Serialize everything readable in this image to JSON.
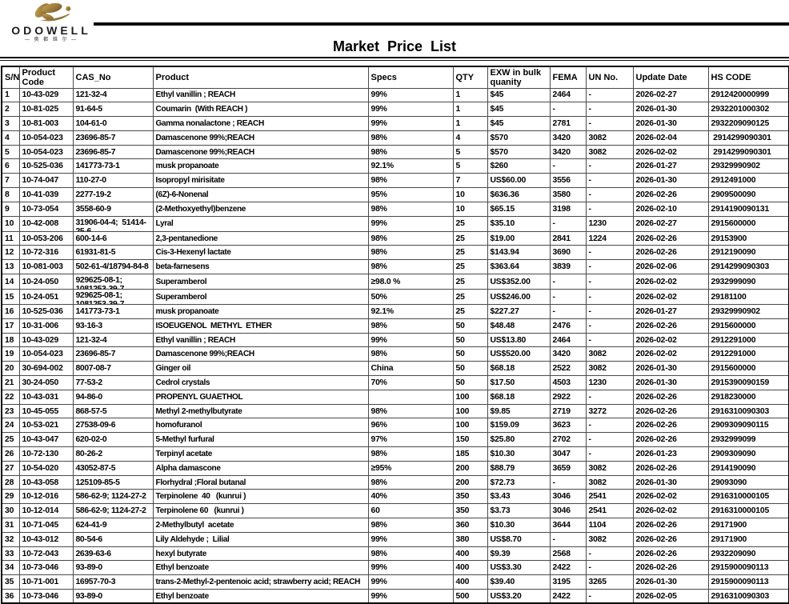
{
  "colors": {
    "logo_gold": "#9a7b3e",
    "logo_gold_dark": "#6f5420",
    "line_black": "#0d0d0d"
  },
  "logo": {
    "name": "ODOWELL",
    "subtitle": "— 奥 都 维 尔 —",
    "icon": "butterfly-orchid-gold-mark"
  },
  "title": "Market Price List",
  "table": {
    "headers": [
      "S/N",
      "Product Code",
      "CAS_No",
      "Product",
      "Specs",
      "QTY",
      "EXW in bulk quanity",
      "FEMA",
      "UN No.",
      "Update Date",
      "HS CODE"
    ],
    "col_keys": [
      "sn",
      "code",
      "cas",
      "product",
      "specs",
      "qty",
      "price",
      "fema",
      "un",
      "date",
      "hs"
    ],
    "rows": [
      {
        "sn": "1",
        "code": "10-43-029",
        "cas": "121-32-4",
        "product": "Ethyl vanillin ; REACH",
        "specs": "99%",
        "qty": "1",
        "price": "$45",
        "fema": "2464",
        "un": "-",
        "date": "2026-02-27",
        "hs": "2912420000999"
      },
      {
        "sn": "2",
        "code": "10-81-025",
        "cas": "91-64-5",
        "product": "Coumarin  (With REACH )",
        "specs": "99%",
        "qty": "1",
        "price": "$45",
        "fema": "-",
        "un": "-",
        "date": "2026-01-30",
        "hs": "2932201000302"
      },
      {
        "sn": "3",
        "code": "10-81-003",
        "cas": "104-61-0",
        "product": "Gamma nonalactone ; REACH",
        "specs": "99%",
        "qty": "1",
        "price": "$45",
        "fema": "2781",
        "un": "-",
        "date": "2026-01-30",
        "hs": "2932209090125"
      },
      {
        "sn": "4",
        "code": "10-054-023",
        "cas": "23696-85-7",
        "product": "Damascenone 99%;REACH",
        "specs": "98%",
        "qty": "4",
        "price": "$570",
        "fema": "3420",
        "un": "3082",
        "date": "2026-02-04",
        "hs": " 2914299090301"
      },
      {
        "sn": "5",
        "code": "10-054-023",
        "cas": "23696-85-7",
        "product": "Damascenone 99%;REACH",
        "specs": "98%",
        "qty": "5",
        "price": "$570",
        "fema": "3420",
        "un": "3082",
        "date": "2026-02-02",
        "hs": " 2914299090301"
      },
      {
        "sn": "6",
        "code": "10-525-036",
        "cas": "141773-73-1",
        "product": "musk propanoate",
        "specs": "92.1%",
        "qty": "5",
        "price": "$260",
        "fema": "-",
        "un": "-",
        "date": "2026-01-27",
        "hs": "29329990902"
      },
      {
        "sn": "7",
        "code": "10-74-047",
        "cas": "110-27-0",
        "product": "Isopropyl mirisitate",
        "specs": "98%",
        "qty": "7",
        "price": "US$60.00",
        "fema": "3556",
        "un": "-",
        "date": "2026-01-30",
        "hs": "2912491000"
      },
      {
        "sn": "8",
        "code": "10-41-039",
        "cas": "2277-19-2",
        "product": "(6Z)-6-Nonenal",
        "specs": "95%",
        "qty": "10",
        "price": "$636.36",
        "fema": "3580",
        "un": "-",
        "date": "2026-02-26",
        "hs": "2909500090"
      },
      {
        "sn": "9",
        "code": "10-73-054",
        "cas": "3558-60-9",
        "product": "(2-Methoxyethyl)benzene",
        "specs": "98%",
        "qty": "10",
        "price": "$65.15",
        "fema": "3198",
        "un": "-",
        "date": "2026-02-10",
        "hs": "2914190090131"
      },
      {
        "sn": "10",
        "code": "10-42-008",
        "cas": "31906-04-4;  51414-\n25-6",
        "product": "Lyral",
        "specs": "99%",
        "qty": "25",
        "price": "$35.10",
        "fema": "-",
        "un": "1230",
        "date": "2026-02-27",
        "hs": "2915600000"
      },
      {
        "sn": "11",
        "code": "10-053-206",
        "cas": "600-14-6",
        "product": "2,3-pentanedione",
        "specs": "98%",
        "qty": "25",
        "price": "$19.00",
        "fema": "2841",
        "un": "1224",
        "date": "2026-02-26",
        "hs": "29153900"
      },
      {
        "sn": "12",
        "code": "10-72-316",
        "cas": "61931-81-5",
        "product": "Cis-3-Hexenyl lactate",
        "specs": "98%",
        "qty": "25",
        "price": "$143.94",
        "fema": "3690",
        "un": "-",
        "date": "2026-02-26",
        "hs": "2912190090"
      },
      {
        "sn": "13",
        "code": "10-081-003",
        "cas": "502-61-4/18794-84-8",
        "product": "beta-farnesens",
        "specs": "98%",
        "qty": "25",
        "price": "$363.64",
        "fema": "3839",
        "un": "-",
        "date": "2026-02-06",
        "hs": "2914299090303"
      },
      {
        "sn": "14",
        "code": "10-24-050",
        "cas": "929625-08-1;\n1081253-39-7",
        "product": "Superamberol",
        "specs": "≥98.0 %",
        "qty": "25",
        "price": "US$352.00",
        "fema": "-",
        "un": "-",
        "date": "2026-02-02",
        "hs": "2932999090"
      },
      {
        "sn": "15",
        "code": "10-24-051",
        "cas": "929625-08-1;\n1081253-39-7",
        "product": "Superamberol",
        "specs": "50%",
        "qty": "25",
        "price": "US$246.00",
        "fema": "-",
        "un": "-",
        "date": "2026-02-02",
        "hs": "29181100"
      },
      {
        "sn": "16",
        "code": "10-525-036",
        "cas": "141773-73-1",
        "product": "musk propanoate",
        "specs": "92.1%",
        "qty": "25",
        "price": "$227.27",
        "fema": "-",
        "un": "-",
        "date": "2026-01-27",
        "hs": "29329990902"
      },
      {
        "sn": "17",
        "code": "10-31-006",
        "cas": "93-16-3",
        "product": "ISOEUGENOL  METHYL  ETHER",
        "specs": "98%",
        "qty": "50",
        "price": "$48.48",
        "fema": "2476",
        "un": "-",
        "date": "2026-02-26",
        "hs": "2915600000"
      },
      {
        "sn": "18",
        "code": "10-43-029",
        "cas": "121-32-4",
        "product": "Ethyl vanillin ; REACH",
        "specs": "99%",
        "qty": "50",
        "price": "US$13.80",
        "fema": "2464",
        "un": "-",
        "date": "2026-02-02",
        "hs": "2912291000"
      },
      {
        "sn": "19",
        "code": "10-054-023",
        "cas": "23696-85-7",
        "product": "Damascenone 99%;REACH",
        "specs": "98%",
        "qty": "50",
        "price": "US$520.00",
        "fema": "3420",
        "un": "3082",
        "date": "2026-02-02",
        "hs": "2912291000"
      },
      {
        "sn": "20",
        "code": "30-694-002",
        "cas": "8007-08-7",
        "product": "Ginger oil",
        "specs": "China",
        "qty": "50",
        "price": "$68.18",
        "fema": "2522",
        "un": "3082",
        "date": "2026-01-30",
        "hs": "2915600000"
      },
      {
        "sn": "21",
        "code": "30-24-050",
        "cas": "77-53-2",
        "product": "Cedrol crystals",
        "specs": "70%",
        "qty": "50",
        "price": "$17.50",
        "fema": "4503",
        "un": "1230",
        "date": "2026-01-30",
        "hs": "2915390090159"
      },
      {
        "sn": "22",
        "code": "10-43-031",
        "cas": "94-86-0",
        "product": "PROPENYL GUAETHOL",
        "specs": "",
        "qty": "100",
        "price": "$68.18",
        "fema": "2922",
        "un": "-",
        "date": "2026-02-26",
        "hs": "2918230000"
      },
      {
        "sn": "23",
        "code": "10-45-055",
        "cas": "868-57-5",
        "product": "Methyl 2-methylbutyrate",
        "specs": "98%",
        "qty": "100",
        "price": "$9.85",
        "fema": "2719",
        "un": "3272",
        "date": "2026-02-26",
        "hs": "2916310090303"
      },
      {
        "sn": "24",
        "code": "10-53-021",
        "cas": "27538-09-6",
        "product": "homofuranol",
        "specs": "96%",
        "qty": "100",
        "price": "$159.09",
        "fema": "3623",
        "un": "-",
        "date": "2026-02-26",
        "hs": "2909309090115"
      },
      {
        "sn": "25",
        "code": "10-43-047",
        "cas": "620-02-0",
        "product": "5-Methyl furfural",
        "specs": "97%",
        "qty": "150",
        "price": "$25.80",
        "fema": "2702",
        "un": "-",
        "date": "2026-02-26",
        "hs": "2932999099"
      },
      {
        "sn": "26",
        "code": "10-72-130",
        "cas": "80-26-2",
        "product": "Terpinyl acetate",
        "specs": "98%",
        "qty": "185",
        "price": "$10.30",
        "fema": "3047",
        "un": "-",
        "date": "2026-01-23",
        "hs": "2909309090"
      },
      {
        "sn": "27",
        "code": "10-54-020",
        "cas": "43052-87-5",
        "product": "Alpha damascone",
        "specs": "≥95%",
        "qty": "200",
        "price": "$88.79",
        "fema": "3659",
        "un": "3082",
        "date": "2026-02-26",
        "hs": "2914190090"
      },
      {
        "sn": "28",
        "code": "10-43-058",
        "cas": "125109-85-5",
        "product": "Florhydral ;Floral butanal",
        "specs": "98%",
        "qty": "200",
        "price": "$72.73",
        "fema": "-",
        "un": "3082",
        "date": "2026-01-30",
        "hs": "29093090"
      },
      {
        "sn": "29",
        "code": "10-12-016",
        "cas": "586-62-9; 1124-27-2",
        "product": "Terpinolene  40   (kunrui )",
        "specs": "40%",
        "qty": "350",
        "price": "$3.43",
        "fema": "3046",
        "un": "2541",
        "date": "2026-02-02",
        "hs": "2916310000105"
      },
      {
        "sn": "30",
        "code": "10-12-014",
        "cas": "586-62-9; 1124-27-2",
        "product": "Terpinolene 60   (kunrui )",
        "specs": "60",
        "qty": "350",
        "price": "$3.73",
        "fema": "3046",
        "un": "2541",
        "date": "2026-02-02",
        "hs": "2916310000105"
      },
      {
        "sn": "31",
        "code": "10-71-045",
        "cas": "624-41-9",
        "product": "2-Methylbutyl  acetate",
        "specs": "98%",
        "qty": "360",
        "price": "$10.30",
        "fema": "3644",
        "un": "1104",
        "date": "2026-02-26",
        "hs": "29171900"
      },
      {
        "sn": "32",
        "code": "10-43-012",
        "cas": "80-54-6",
        "product": "Lily Aldehyde ;  Lilial",
        "specs": "99%",
        "qty": "380",
        "price": "US$8.70",
        "fema": "-",
        "un": "3082",
        "date": "2026-02-26",
        "hs": "29171900"
      },
      {
        "sn": "33",
        "code": "10-72-043",
        "cas": "2639-63-6",
        "product": "hexyl butyrate",
        "specs": "98%",
        "qty": "400",
        "price": "$9.39",
        "fema": "2568",
        "un": "-",
        "date": "2026-02-26",
        "hs": "2932209090"
      },
      {
        "sn": "34",
        "code": "10-73-046",
        "cas": "93-89-0",
        "product": "Ethyl benzoate",
        "specs": "99%",
        "qty": "400",
        "price": "US$3.30",
        "fema": "2422",
        "un": "-",
        "date": "2026-02-26",
        "hs": "2915900090113"
      },
      {
        "sn": "35",
        "code": "10-71-001",
        "cas": "16957-70-3",
        "product": "trans-2-Methyl-2-pentenoic acid; strawberry acid; REACH",
        "specs": "99%",
        "qty": "400",
        "price": "$39.40",
        "fema": "3195",
        "un": "3265",
        "date": "2026-01-30",
        "hs": "2915900090113"
      },
      {
        "sn": "36",
        "code": "10-73-046",
        "cas": "93-89-0",
        "product": "Ethyl benzoate",
        "specs": "99%",
        "qty": "500",
        "price": "US$3.20",
        "fema": "2422",
        "un": "-",
        "date": "2026-02-05",
        "hs": "2916310090303"
      }
    ]
  }
}
